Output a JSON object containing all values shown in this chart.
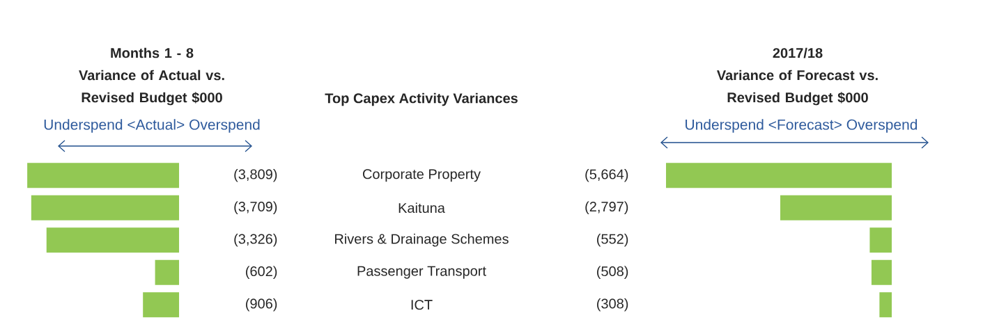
{
  "chart_data": [
    {
      "type": "bar",
      "orientation": "horizontal",
      "title": "Months 1 - 8",
      "subtitle": "Variance of Actual vs. Revised Budget $000",
      "categories": [
        "Corporate Property",
        "Kaituna",
        "Rivers & Drainage Schemes",
        "Passenger Transport",
        "ICT"
      ],
      "values": [
        -3809,
        -3709,
        -3326,
        -602,
        -906
      ],
      "value_labels": [
        "(3,809)",
        "(3,709)",
        "(3,326)",
        "(602)",
        "(906)"
      ],
      "color": "#92c853",
      "tick_labels": "y",
      "annotations": [
        "Underspend  <Actual> Overspend",
        "Top Capex Activity Variances"
      ]
    },
    {
      "type": "bar",
      "orientation": "horizontal",
      "title": "2017/18",
      "subtitle": "Variance of Forecast vs. Revised Budget $000",
      "categories": [
        null,
        null,
        null,
        null,
        null
      ],
      "values": [
        -5664,
        -2797,
        -552,
        -508,
        -308
      ],
      "value_labels": [
        "(5,664)",
        "(2,797)",
        "(552)",
        "(508)",
        "(308)"
      ],
      "color": "#92c853",
      "tick_labels": false,
      "annotations": [
        "Underspend <Forecast> Overspend"
      ]
    }
  ]
}
